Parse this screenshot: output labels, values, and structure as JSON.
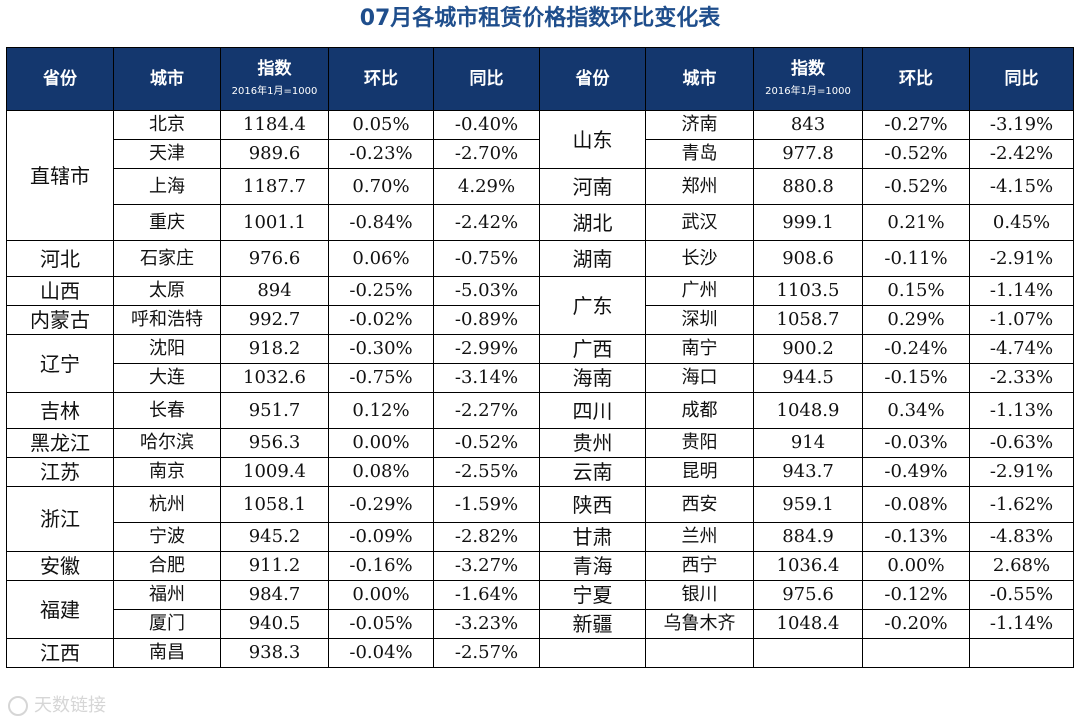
{
  "title": "07月各城市租赁价格指数环比变化表",
  "headers": {
    "province": "省份",
    "city": "城市",
    "index": "指数",
    "index_base": "2016年1月=1000",
    "mom": "环比",
    "yoy": "同比"
  },
  "left": {
    "provinces": [
      "直辖市",
      "河北",
      "山西",
      "内蒙古",
      "辽宁",
      "吉林",
      "黑龙江",
      "江苏",
      "浙江",
      "安徽",
      "福建",
      "江西"
    ],
    "rows": [
      {
        "city": "北京",
        "index": "1184.4",
        "mom": "0.05%",
        "yoy": "-0.40%"
      },
      {
        "city": "天津",
        "index": "989.6",
        "mom": "-0.23%",
        "yoy": "-2.70%"
      },
      {
        "city": "上海",
        "index": "1187.7",
        "mom": "0.70%",
        "yoy": "4.29%"
      },
      {
        "city": "重庆",
        "index": "1001.1",
        "mom": "-0.84%",
        "yoy": "-2.42%"
      },
      {
        "city": "石家庄",
        "index": "976.6",
        "mom": "0.06%",
        "yoy": "-0.75%"
      },
      {
        "city": "太原",
        "index": "894",
        "mom": "-0.25%",
        "yoy": "-5.03%"
      },
      {
        "city": "呼和浩特",
        "index": "992.7",
        "mom": "-0.02%",
        "yoy": "-0.89%"
      },
      {
        "city": "沈阳",
        "index": "918.2",
        "mom": "-0.30%",
        "yoy": "-2.99%"
      },
      {
        "city": "大连",
        "index": "1032.6",
        "mom": "-0.75%",
        "yoy": "-3.14%"
      },
      {
        "city": "长春",
        "index": "951.7",
        "mom": "0.12%",
        "yoy": "-2.27%"
      },
      {
        "city": "哈尔滨",
        "index": "956.3",
        "mom": "0.00%",
        "yoy": "-0.52%"
      },
      {
        "city": "南京",
        "index": "1009.4",
        "mom": "0.08%",
        "yoy": "-2.55%"
      },
      {
        "city": "杭州",
        "index": "1058.1",
        "mom": "-0.29%",
        "yoy": "-1.59%"
      },
      {
        "city": "宁波",
        "index": "945.2",
        "mom": "-0.09%",
        "yoy": "-2.82%"
      },
      {
        "city": "合肥",
        "index": "911.2",
        "mom": "-0.16%",
        "yoy": "-3.27%"
      },
      {
        "city": "福州",
        "index": "984.7",
        "mom": "0.00%",
        "yoy": "-1.64%"
      },
      {
        "city": "厦门",
        "index": "940.5",
        "mom": "-0.05%",
        "yoy": "-3.23%"
      },
      {
        "city": "南昌",
        "index": "938.3",
        "mom": "-0.04%",
        "yoy": "-2.57%"
      }
    ]
  },
  "right": {
    "provinces": [
      "山东",
      "河南",
      "湖北",
      "湖南",
      "广东",
      "广西",
      "海南",
      "四川",
      "贵州",
      "云南",
      "陕西",
      "甘肃",
      "青海",
      "宁夏",
      "新疆"
    ],
    "rows": [
      {
        "city": "济南",
        "index": "843",
        "mom": "-0.27%",
        "yoy": "-3.19%"
      },
      {
        "city": "青岛",
        "index": "977.8",
        "mom": "-0.52%",
        "yoy": "-2.42%"
      },
      {
        "city": "郑州",
        "index": "880.8",
        "mom": "-0.52%",
        "yoy": "-4.15%"
      },
      {
        "city": "武汉",
        "index": "999.1",
        "mom": "0.21%",
        "yoy": "0.45%"
      },
      {
        "city": "长沙",
        "index": "908.6",
        "mom": "-0.11%",
        "yoy": "-2.91%"
      },
      {
        "city": "广州",
        "index": "1103.5",
        "mom": "0.15%",
        "yoy": "-1.14%"
      },
      {
        "city": "深圳",
        "index": "1058.7",
        "mom": "0.29%",
        "yoy": "-1.07%"
      },
      {
        "city": "南宁",
        "index": "900.2",
        "mom": "-0.24%",
        "yoy": "-4.74%"
      },
      {
        "city": "海口",
        "index": "944.5",
        "mom": "-0.15%",
        "yoy": "-2.33%"
      },
      {
        "city": "成都",
        "index": "1048.9",
        "mom": "0.34%",
        "yoy": "-1.13%"
      },
      {
        "city": "贵阳",
        "index": "914",
        "mom": "-0.03%",
        "yoy": "-0.63%"
      },
      {
        "city": "昆明",
        "index": "943.7",
        "mom": "-0.49%",
        "yoy": "-2.91%"
      },
      {
        "city": "西安",
        "index": "959.1",
        "mom": "-0.08%",
        "yoy": "-1.62%"
      },
      {
        "city": "兰州",
        "index": "884.9",
        "mom": "-0.13%",
        "yoy": "-4.83%"
      },
      {
        "city": "西宁",
        "index": "1036.4",
        "mom": "0.00%",
        "yoy": "2.68%"
      },
      {
        "city": "银川",
        "index": "975.6",
        "mom": "-0.12%",
        "yoy": "-0.55%"
      },
      {
        "city": "乌鲁木齐",
        "index": "1048.4",
        "mom": "-0.20%",
        "yoy": "-1.14%"
      }
    ]
  },
  "watermark": "天数链接",
  "colors": {
    "title": "#1f4e8c",
    "header_bg": "#14376e",
    "header_text": "#ffffff"
  }
}
